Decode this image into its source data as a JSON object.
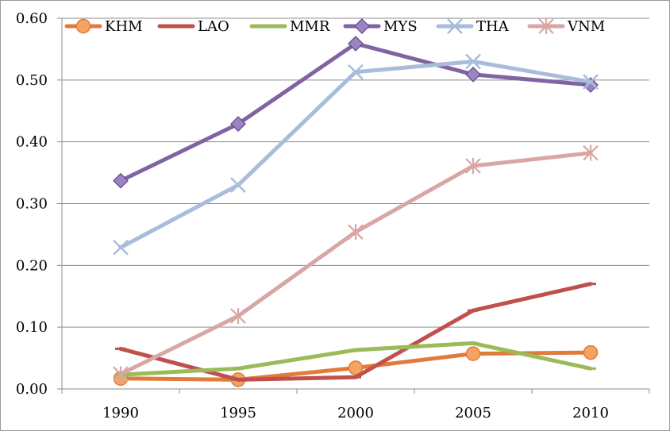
{
  "chart_data": {
    "type": "line",
    "x": [
      "1990",
      "1995",
      "2000",
      "2005",
      "2010"
    ],
    "ylim": [
      0,
      0.6
    ],
    "yticks": [
      "0.00",
      "0.10",
      "0.20",
      "0.30",
      "0.40",
      "0.50",
      "0.60"
    ],
    "grid": true,
    "legend_position": "top",
    "series": [
      {
        "name": "KHM",
        "color": "#e07b39",
        "marker": "circle",
        "values": [
          0.017,
          0.015,
          0.034,
          0.057,
          0.059
        ]
      },
      {
        "name": "LAO",
        "color": "#c0504d",
        "marker": "dash",
        "values": [
          0.065,
          0.015,
          0.019,
          0.127,
          0.17
        ]
      },
      {
        "name": "MMR",
        "color": "#9bbb59",
        "marker": "dash",
        "values": [
          0.023,
          0.033,
          0.063,
          0.074,
          0.033
        ]
      },
      {
        "name": "MYS",
        "color": "#8064a2",
        "marker": "diamond",
        "values": [
          0.337,
          0.429,
          0.559,
          0.509,
          0.492
        ]
      },
      {
        "name": "THA",
        "color": "#a9bcdb",
        "marker": "x",
        "values": [
          0.229,
          0.33,
          0.513,
          0.53,
          0.497
        ]
      },
      {
        "name": "VNM",
        "color": "#d8a6a5",
        "marker": "star",
        "values": [
          0.024,
          0.118,
          0.254,
          0.361,
          0.382
        ]
      }
    ]
  }
}
